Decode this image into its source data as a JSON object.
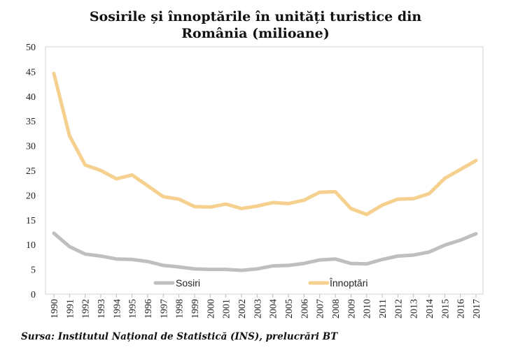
{
  "chart_data": {
    "type": "line",
    "title_line1": "Sosirile și înnoptările în unități turistice din",
    "title_line2": "România (milioane)",
    "xlabel": "",
    "ylabel": "",
    "ylim": [
      0,
      50
    ],
    "yticks": [
      0,
      5,
      10,
      15,
      20,
      25,
      30,
      35,
      40,
      45,
      50
    ],
    "x": [
      "1990",
      "1991",
      "1992",
      "1993",
      "1994",
      "1995",
      "1996",
      "1997",
      "1998",
      "1999",
      "2000",
      "2001",
      "2002",
      "2003",
      "2004",
      "2005",
      "2006",
      "2007",
      "2008",
      "2009",
      "2010",
      "2011",
      "2012",
      "2013",
      "2014",
      "2015",
      "2016",
      "2017"
    ],
    "series": [
      {
        "name": "Sosiri",
        "color": "#bfbfbf",
        "values": [
          12.3,
          9.6,
          8.1,
          7.7,
          7.1,
          7.0,
          6.6,
          5.8,
          5.5,
          5.1,
          5.0,
          5.0,
          4.8,
          5.1,
          5.7,
          5.8,
          6.2,
          6.9,
          7.1,
          6.2,
          6.1,
          7.0,
          7.7,
          7.9,
          8.5,
          9.9,
          10.9,
          12.2
        ]
      },
      {
        "name": "Înnoptări",
        "color": "#f6d08e",
        "values": [
          44.6,
          32.0,
          26.1,
          25.0,
          23.3,
          24.1,
          21.9,
          19.7,
          19.2,
          17.7,
          17.6,
          18.2,
          17.3,
          17.8,
          18.5,
          18.3,
          19.0,
          20.6,
          20.7,
          17.3,
          16.1,
          18.0,
          19.2,
          19.3,
          20.3,
          23.4,
          25.2,
          27.0
        ]
      }
    ],
    "grid": false,
    "legend_position": "bottom-inside"
  },
  "source_note": "Sursa: Institutul Național de Statistică (INS), prelucrări BT"
}
